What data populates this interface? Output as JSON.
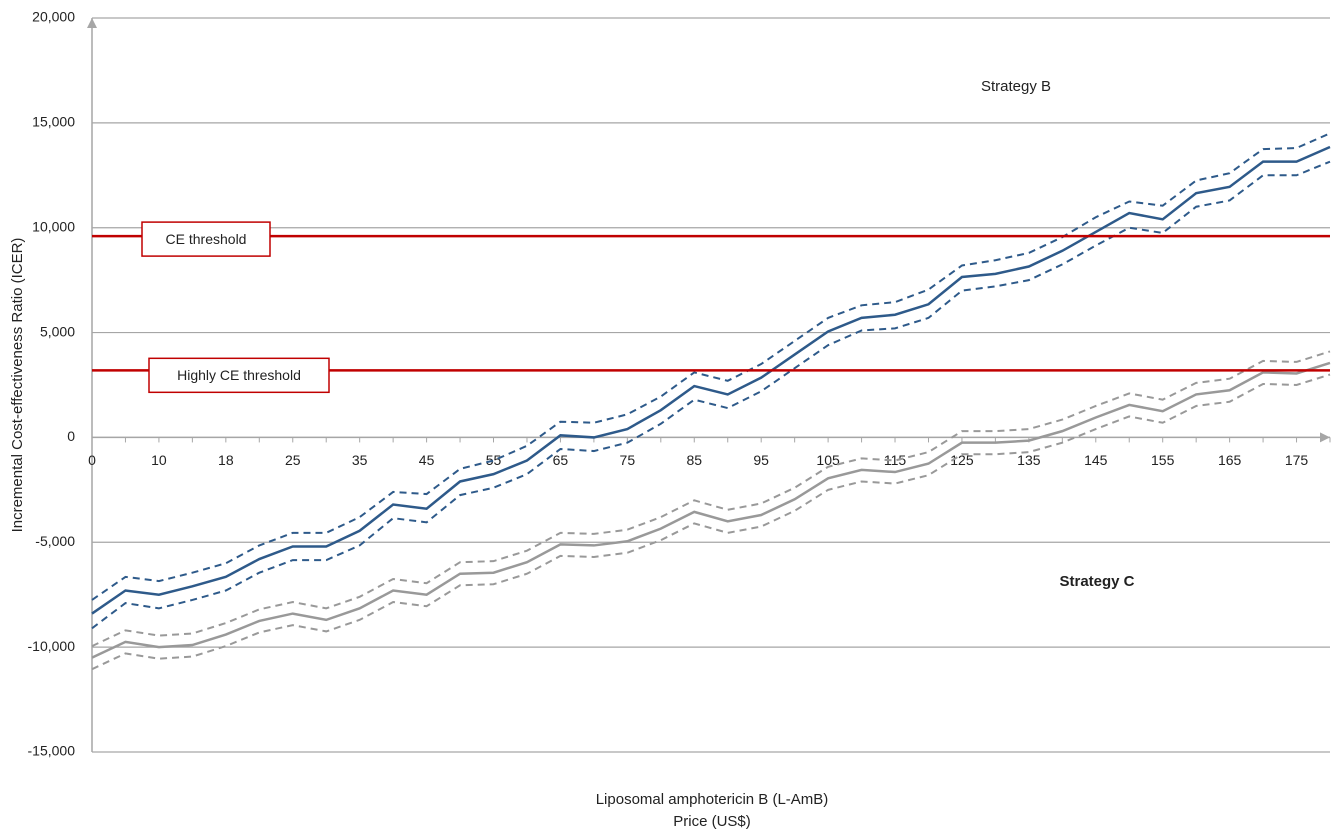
{
  "chart_data": {
    "type": "line",
    "y_label": "Incremental Cost-effectiveness Ratio (ICER)",
    "x_label": [
      "Liposomal amphotericin B (L-AmB)",
      "Price (US$)"
    ],
    "categories": [
      0,
      null,
      10,
      null,
      18,
      null,
      25,
      null,
      35,
      null,
      45,
      null,
      55,
      null,
      65,
      null,
      75,
      null,
      85,
      null,
      95,
      null,
      105,
      null,
      115,
      null,
      125,
      null,
      135,
      null,
      145,
      null,
      155,
      null,
      165,
      null,
      175,
      null
    ],
    "ylim": [
      -15000,
      20000
    ],
    "yticks": [
      {
        "value": -15000,
        "label": "-15,000"
      },
      {
        "value": -10000,
        "label": "-10,000"
      },
      {
        "value": -5000,
        "label": "-5,000"
      },
      0,
      {
        "value": 5000,
        "label": "5,000"
      },
      {
        "value": 10000,
        "label": "10,000"
      },
      {
        "value": 15000,
        "label": "15,000"
      },
      {
        "value": 20000,
        "label": "20,000"
      }
    ],
    "grid": true,
    "series": [
      {
        "name": "Strategy B",
        "color": "#2e5a8a",
        "values": [
          -8400,
          -7300,
          -7500,
          -7100,
          -6650,
          -5800,
          -5200,
          -5200,
          -4450,
          -3200,
          -3400,
          -2100,
          -1750,
          -1100,
          100,
          0,
          400,
          1300,
          2450,
          2050,
          2850,
          3950,
          5050,
          5700,
          5850,
          6350,
          7650,
          7800,
          8150,
          8900,
          9800,
          10700,
          10400,
          11650,
          11950,
          13150,
          13150,
          13850
        ],
        "upper": [
          -7750,
          -6650,
          -6850,
          -6450,
          -6000,
          -5150,
          -4550,
          -4550,
          -3800,
          -2600,
          -2700,
          -1500,
          -1100,
          -400,
          750,
          700,
          1100,
          1950,
          3100,
          2700,
          3500,
          4600,
          5700,
          6300,
          6450,
          7050,
          8200,
          8450,
          8800,
          9550,
          10500,
          11250,
          11050,
          12250,
          12600,
          13750,
          13800,
          14500
        ],
        "lower": [
          -9100,
          -7900,
          -8150,
          -7750,
          -7300,
          -6450,
          -5850,
          -5850,
          -5150,
          -3850,
          -4050,
          -2750,
          -2400,
          -1750,
          -550,
          -650,
          -250,
          650,
          1800,
          1400,
          2200,
          3300,
          4400,
          5100,
          5200,
          5700,
          7000,
          7200,
          7500,
          8250,
          9150,
          10000,
          9750,
          11000,
          11300,
          12500,
          12500,
          13150
        ]
      },
      {
        "name": "Strategy C",
        "color": "#999999",
        "values": [
          -10500,
          -9750,
          -10000,
          -9900,
          -9400,
          -8750,
          -8400,
          -8700,
          -8150,
          -7300,
          -7500,
          -6500,
          -6450,
          -5950,
          -5100,
          -5150,
          -4950,
          -4350,
          -3550,
          -4000,
          -3700,
          -2950,
          -1950,
          -1550,
          -1650,
          -1250,
          -250,
          -250,
          -150,
          300,
          950,
          1550,
          1250,
          2050,
          2250,
          3100,
          3050,
          3550
        ],
        "upper": [
          -9950,
          -9200,
          -9450,
          -9350,
          -8850,
          -8200,
          -7850,
          -8150,
          -7600,
          -6750,
          -6950,
          -5950,
          -5900,
          -5400,
          -4550,
          -4600,
          -4400,
          -3800,
          -3000,
          -3450,
          -3150,
          -2400,
          -1400,
          -1000,
          -1100,
          -700,
          300,
          300,
          400,
          850,
          1500,
          2100,
          1800,
          2600,
          2800,
          3650,
          3600,
          4100
        ],
        "lower": [
          -11050,
          -10300,
          -10550,
          -10450,
          -9950,
          -9300,
          -8950,
          -9250,
          -8700,
          -7850,
          -8050,
          -7050,
          -7000,
          -6500,
          -5650,
          -5700,
          -5500,
          -4900,
          -4100,
          -4550,
          -4250,
          -3500,
          -2500,
          -2100,
          -2200,
          -1800,
          -800,
          -800,
          -700,
          -250,
          400,
          1000,
          700,
          1500,
          1700,
          2550,
          2500,
          3000
        ]
      }
    ],
    "thresholds": [
      {
        "label": "CE threshold",
        "value": 9600,
        "color": "#c00000"
      },
      {
        "label": "Highly CE threshold",
        "value": 3200,
        "color": "#c00000"
      }
    ]
  }
}
